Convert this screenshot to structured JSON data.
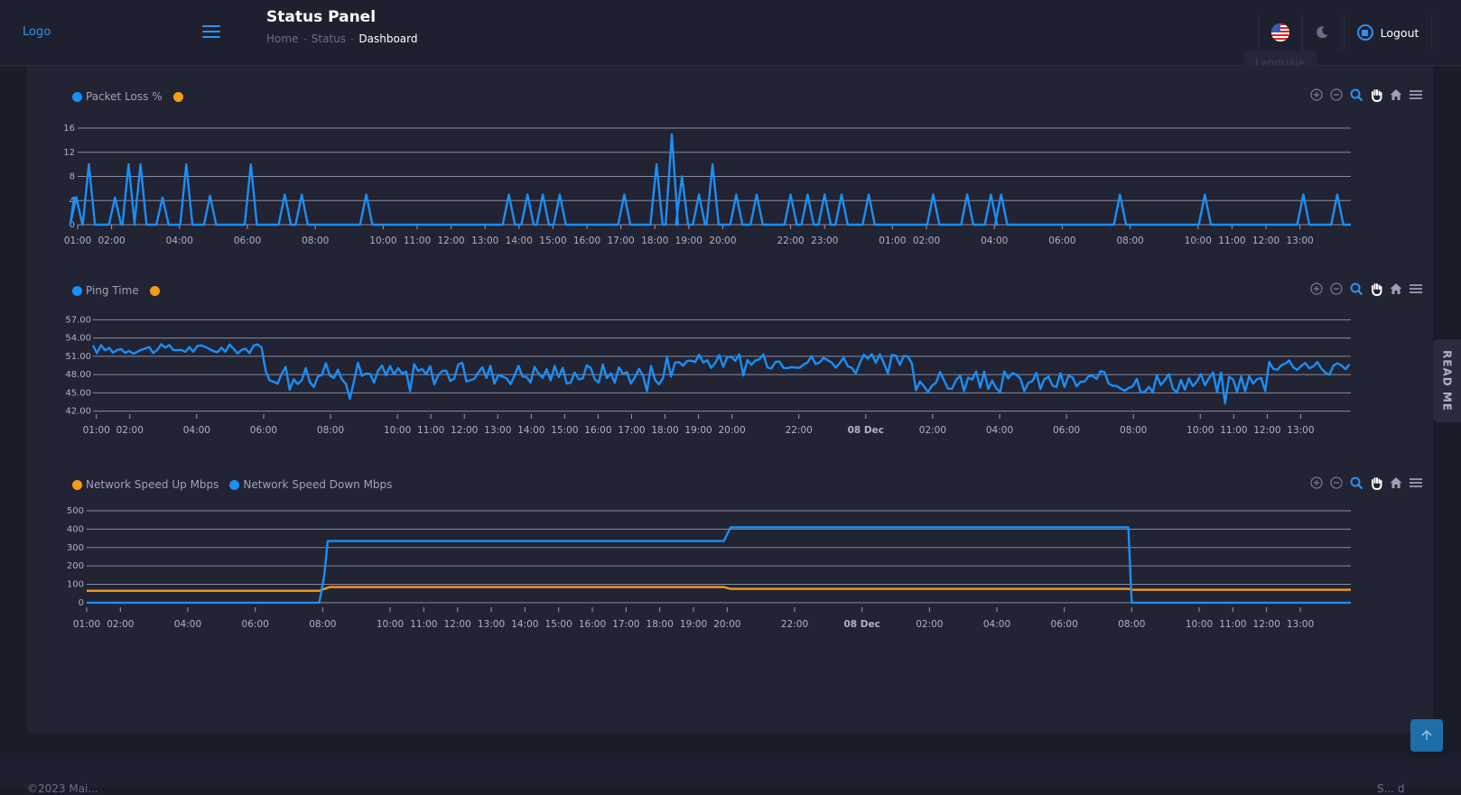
{
  "header": {
    "logo": "Logo",
    "title": "Status Panel",
    "breadcrumb": [
      "Home",
      "Status",
      "Dashboard"
    ],
    "language_tooltip": "Lenguaje",
    "logout_label": "Logout"
  },
  "readme_label": "READ ME",
  "footer": {
    "copyright": "©2023 Mai...",
    "right": "S... d"
  },
  "icons": {
    "menu": "hamburger-icon",
    "flag": "us-flag-icon",
    "theme": "moon-icon",
    "logout": "power-icon",
    "zoom_in": "zoom-in-icon",
    "zoom_out": "zoom-out-icon",
    "selection_zoom": "magnifier-icon",
    "pan": "hand-icon",
    "reset": "home-icon",
    "menu_chart": "menu-icon",
    "to_top": "arrow-up-icon"
  },
  "colors": {
    "accent": "#2e93f0",
    "series_blue": "#1a8ff5",
    "series_orange": "#f59c1a",
    "grid": "#9aa0ba"
  },
  "chart_data": [
    {
      "type": "line",
      "legend": [
        {
          "name": "Packet Loss %",
          "color": "#1a8ff5"
        },
        {
          "name": "",
          "color": "#f59c1a"
        }
      ],
      "yticks": [
        "0",
        "4",
        "8",
        "12",
        "16"
      ],
      "ylim": [
        0,
        16
      ],
      "xticks": [
        "01:00",
        "02:00",
        "04:00",
        "06:00",
        "08:00",
        "10:00",
        "11:00",
        "12:00",
        "13:00",
        "14:00",
        "15:00",
        "16:00",
        "17:00",
        "18:00",
        "19:00",
        "20:00",
        "22:00",
        "23:00",
        "01:00",
        "02:00",
        "04:00",
        "06:00",
        "08:00",
        "10:00",
        "11:00",
        "12:00",
        "13:00"
      ],
      "x_hours": [
        1,
        2,
        4,
        6,
        8,
        10,
        11,
        12,
        13,
        14,
        15,
        16,
        17,
        18,
        19,
        20,
        22,
        23,
        25,
        26,
        28,
        30,
        32,
        34,
        35,
        36,
        37
      ],
      "x_range_hours": [
        1,
        38.5
      ],
      "spikes": [
        {
          "t": 0.96,
          "v": 4.5
        },
        {
          "t": 1.33,
          "v": 10
        },
        {
          "t": 2.1,
          "v": 4.5
        },
        {
          "t": 2.5,
          "v": 10
        },
        {
          "t": 2.85,
          "v": 10
        },
        {
          "t": 3.5,
          "v": 4.5
        },
        {
          "t": 4.2,
          "v": 10
        },
        {
          "t": 4.9,
          "v": 4.8
        },
        {
          "t": 6.1,
          "v": 10
        },
        {
          "t": 7.1,
          "v": 5
        },
        {
          "t": 7.6,
          "v": 5
        },
        {
          "t": 9.5,
          "v": 5
        },
        {
          "t": 13.7,
          "v": 5
        },
        {
          "t": 14.25,
          "v": 5
        },
        {
          "t": 14.7,
          "v": 5
        },
        {
          "t": 15.2,
          "v": 5
        },
        {
          "t": 17.1,
          "v": 5
        },
        {
          "t": 18.05,
          "v": 10
        },
        {
          "t": 18.5,
          "v": 15
        },
        {
          "t": 18.8,
          "v": 8
        },
        {
          "t": 19.3,
          "v": 5
        },
        {
          "t": 19.7,
          "v": 10
        },
        {
          "t": 20.4,
          "v": 5
        },
        {
          "t": 21.0,
          "v": 5
        },
        {
          "t": 22.0,
          "v": 5
        },
        {
          "t": 22.5,
          "v": 5
        },
        {
          "t": 23.0,
          "v": 5
        },
        {
          "t": 23.5,
          "v": 5
        },
        {
          "t": 24.3,
          "v": 5
        },
        {
          "t": 26.2,
          "v": 5
        },
        {
          "t": 27.2,
          "v": 5
        },
        {
          "t": 27.9,
          "v": 5
        },
        {
          "t": 28.2,
          "v": 5
        },
        {
          "t": 31.7,
          "v": 5
        },
        {
          "t": 34.2,
          "v": 5
        },
        {
          "t": 37.1,
          "v": 5
        },
        {
          "t": 38.1,
          "v": 5
        }
      ]
    },
    {
      "type": "line",
      "legend": [
        {
          "name": "Ping Time",
          "color": "#1a8ff5"
        },
        {
          "name": "",
          "color": "#f59c1a"
        }
      ],
      "yticks": [
        "42.00",
        "45.00",
        "48.00",
        "51.00",
        "54.00",
        "57.00"
      ],
      "ylim": [
        41.5,
        57.5
      ],
      "xticks": [
        "01:00",
        "02:00",
        "04:00",
        "06:00",
        "08:00",
        "10:00",
        "11:00",
        "12:00",
        "13:00",
        "14:00",
        "15:00",
        "16:00",
        "17:00",
        "18:00",
        "19:00",
        "20:00",
        "22:00",
        "08 Dec",
        "02:00",
        "04:00",
        "06:00",
        "08:00",
        "10:00",
        "11:00",
        "12:00",
        "13:00"
      ],
      "x_hours": [
        1,
        2,
        4,
        6,
        8,
        10,
        11,
        12,
        13,
        14,
        15,
        16,
        17,
        18,
        19,
        20,
        22,
        24,
        26,
        28,
        30,
        32,
        34,
        35,
        36,
        37
      ],
      "x_range_hours": [
        0.9,
        38.5
      ],
      "segments": [
        {
          "from": 0.9,
          "to": 6,
          "mean": 52.2,
          "amp": 0.8
        },
        {
          "from": 6,
          "to": 18,
          "mean": 48.2,
          "amp": 1.8
        },
        {
          "from": 18,
          "to": 25.5,
          "mean": 50.2,
          "amp": 1.2
        },
        {
          "from": 25.5,
          "to": 36,
          "mean": 46.8,
          "amp": 1.8
        },
        {
          "from": 36,
          "to": 38.5,
          "mean": 49.8,
          "amp": 1.2
        }
      ]
    },
    {
      "type": "line",
      "legend": [
        {
          "name": "Network Speed Up Mbps",
          "color": "#f59c1a"
        },
        {
          "name": "Network Speed Down Mbps",
          "color": "#1a8ff5"
        }
      ],
      "yticks": [
        "0",
        "100",
        "200",
        "300",
        "400",
        "500"
      ],
      "ylim": [
        -25,
        500
      ],
      "xticks": [
        "01:00",
        "02:00",
        "04:00",
        "06:00",
        "08:00",
        "10:00",
        "11:00",
        "12:00",
        "13:00",
        "14:00",
        "15:00",
        "16:00",
        "17:00",
        "18:00",
        "19:00",
        "20:00",
        "22:00",
        "08 Dec",
        "02:00",
        "04:00",
        "06:00",
        "08:00",
        "10:00",
        "11:00",
        "12:00",
        "13:00"
      ],
      "x_hours": [
        1,
        2,
        4,
        6,
        8,
        10,
        11,
        12,
        13,
        14,
        15,
        16,
        17,
        18,
        19,
        20,
        22,
        24,
        26,
        28,
        30,
        32,
        34,
        35,
        36,
        37
      ],
      "x_range_hours": [
        1,
        38.5
      ],
      "series": [
        {
          "name": "Network Speed Up Mbps",
          "x": [
            1,
            7.9,
            8.2,
            19.9,
            20.1,
            31.9,
            32.0,
            38.5
          ],
          "values": [
            65,
            65,
            85,
            85,
            75,
            75,
            70,
            70
          ]
        },
        {
          "name": "Network Speed Down Mbps",
          "x": [
            1,
            7.9,
            8.05,
            8.15,
            19.9,
            20.1,
            31.9,
            32.0,
            38.5
          ],
          "values": [
            0,
            0,
            150,
            335,
            335,
            410,
            410,
            0,
            0
          ]
        }
      ]
    }
  ]
}
